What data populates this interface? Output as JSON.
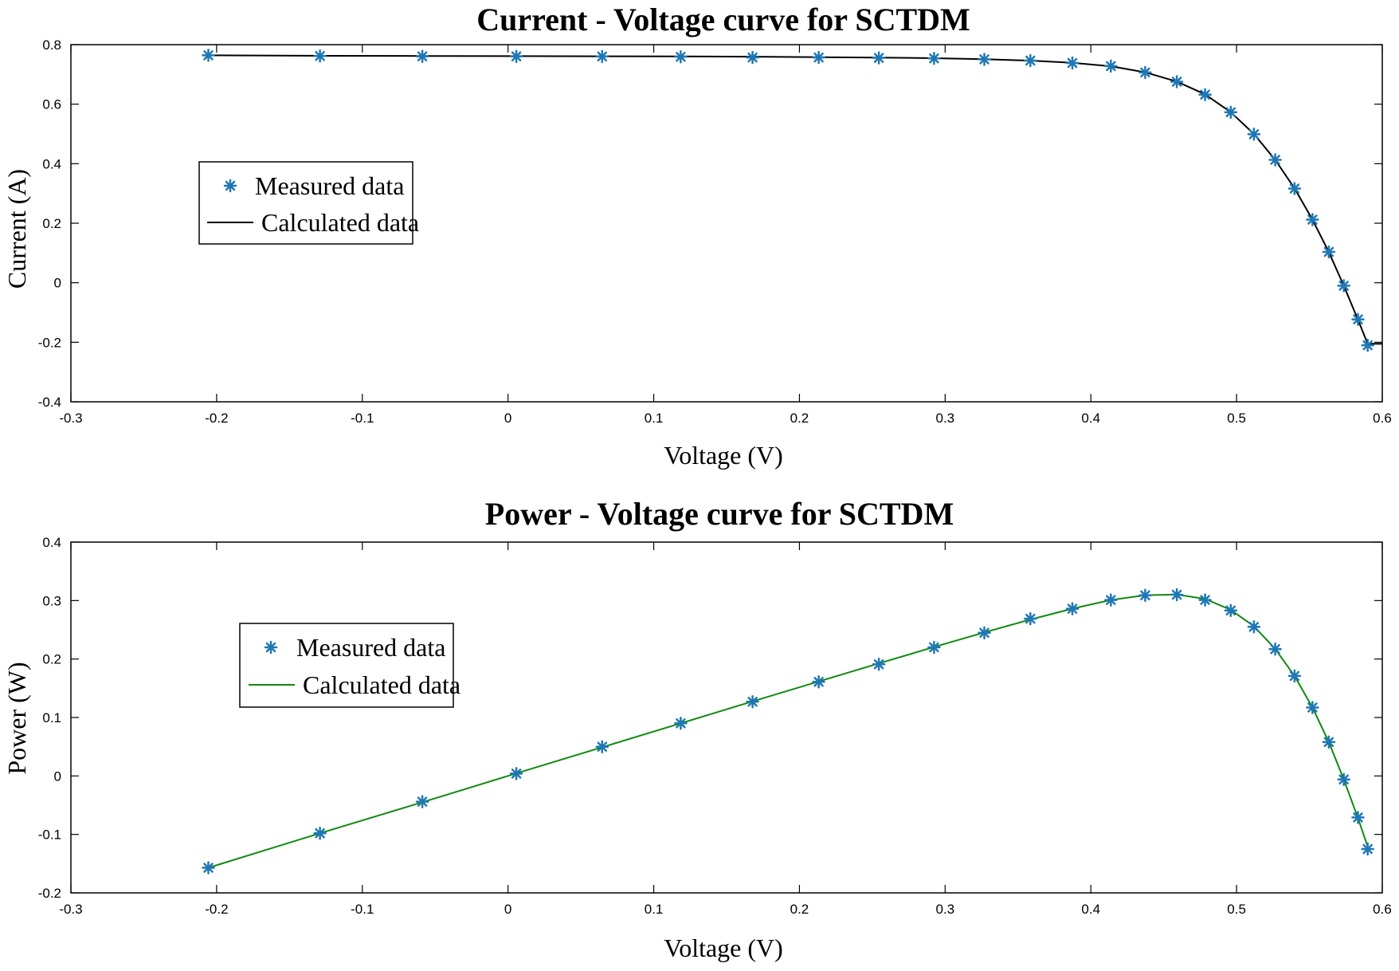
{
  "chart_data": [
    {
      "type": "line",
      "title": "Current - Voltage curve for SCTDM",
      "xlabel": "Voltage (V)",
      "ylabel": "Current  (A)",
      "xlim": [
        -0.3,
        0.6
      ],
      "ylim": [
        -0.4,
        0.8
      ],
      "xticks": [
        -0.3,
        -0.2,
        -0.1,
        0,
        0.1,
        0.2,
        0.3,
        0.4,
        0.5,
        0.6
      ],
      "xtick_labels": [
        "-0.3",
        "-0.2",
        "-0.1",
        "0",
        "0.1",
        "0.2",
        "0.3",
        "0.4",
        "0.5",
        "0.6"
      ],
      "yticks": [
        -0.4,
        -0.2,
        0,
        0.2,
        0.4,
        0.6,
        0.8
      ],
      "ytick_labels": [
        "-0.4",
        "-0.2",
        "0",
        "0.2",
        "0.4",
        "0.6",
        "0.8"
      ],
      "legend_position": "upper-left",
      "series": [
        {
          "name": "Measured data",
          "style": "markers",
          "color": "#1f77b4",
          "x": [
            -0.2057,
            -0.1291,
            -0.0588,
            0.0057,
            0.0646,
            0.1185,
            0.1678,
            0.2132,
            0.2545,
            0.2924,
            0.3269,
            0.3585,
            0.3873,
            0.4137,
            0.4373,
            0.459,
            0.4784,
            0.496,
            0.5119,
            0.5265,
            0.5398,
            0.5521,
            0.5633,
            0.5736,
            0.5833,
            0.59
          ],
          "y": [
            0.764,
            0.762,
            0.7605,
            0.7605,
            0.76,
            0.759,
            0.757,
            0.757,
            0.7555,
            0.754,
            0.7505,
            0.7465,
            0.7385,
            0.728,
            0.7065,
            0.6755,
            0.632,
            0.573,
            0.499,
            0.413,
            0.3165,
            0.212,
            0.1035,
            -0.01,
            -0.123,
            -0.21
          ]
        },
        {
          "name": "Calculated data",
          "style": "line",
          "color": "#000000",
          "x": [
            -0.2057,
            -0.1291,
            -0.0588,
            0.0057,
            0.0646,
            0.1185,
            0.1678,
            0.2132,
            0.2545,
            0.2924,
            0.3269,
            0.3585,
            0.3873,
            0.4137,
            0.4373,
            0.459,
            0.4784,
            0.496,
            0.5119,
            0.5265,
            0.5398,
            0.5521,
            0.5633,
            0.5736,
            0.5833,
            0.59,
            0.6
          ],
          "y": [
            0.764,
            0.7625,
            0.762,
            0.7615,
            0.761,
            0.7605,
            0.7595,
            0.758,
            0.7565,
            0.7545,
            0.751,
            0.7465,
            0.739,
            0.7275,
            0.707,
            0.676,
            0.633,
            0.573,
            0.5,
            0.413,
            0.317,
            0.212,
            0.103,
            -0.01,
            -0.124,
            -0.205,
            -0.205
          ]
        }
      ]
    },
    {
      "type": "line",
      "title": "Power - Voltage curve for SCTDM",
      "xlabel": "Voltage (V)",
      "ylabel": "Power  (W)",
      "xlim": [
        -0.3,
        0.6
      ],
      "ylim": [
        -0.2,
        0.4
      ],
      "xticks": [
        -0.3,
        -0.2,
        -0.1,
        0,
        0.1,
        0.2,
        0.3,
        0.4,
        0.5,
        0.6
      ],
      "xtick_labels": [
        "-0.3",
        "-0.2",
        "-0.1",
        "0",
        "0.1",
        "0.2",
        "0.3",
        "0.4",
        "0.5",
        "0.6"
      ],
      "yticks": [
        -0.2,
        -0.1,
        0,
        0.1,
        0.2,
        0.3,
        0.4
      ],
      "ytick_labels": [
        "-0.2",
        "-0.1",
        "0",
        "0.1",
        "0.2",
        "0.3",
        "0.4"
      ],
      "legend_position": "upper-left",
      "series": [
        {
          "name": "Measured data",
          "style": "markers",
          "color": "#1f77b4",
          "x": [
            -0.2057,
            -0.1291,
            -0.0588,
            0.0057,
            0.0646,
            0.1185,
            0.1678,
            0.2132,
            0.2545,
            0.2924,
            0.3269,
            0.3585,
            0.3873,
            0.4137,
            0.4373,
            0.459,
            0.4784,
            0.496,
            0.5119,
            0.5265,
            0.5398,
            0.5521,
            0.5633,
            0.5736,
            0.5833,
            0.59
          ],
          "y": [
            -0.157,
            -0.098,
            -0.044,
            0.004,
            0.05,
            0.09,
            0.127,
            0.161,
            0.191,
            0.22,
            0.245,
            0.269,
            0.286,
            0.301,
            0.309,
            0.31,
            0.301,
            0.283,
            0.255,
            0.217,
            0.171,
            0.117,
            0.058,
            -0.006,
            -0.071,
            -0.125
          ]
        },
        {
          "name": "Calculated data",
          "style": "line",
          "color": "#0f8a0f",
          "x": [
            -0.2057,
            -0.1291,
            -0.0588,
            0.0057,
            0.0646,
            0.1185,
            0.1678,
            0.2132,
            0.2545,
            0.2924,
            0.3269,
            0.3585,
            0.3873,
            0.4137,
            0.4373,
            0.459,
            0.4784,
            0.496,
            0.5119,
            0.5265,
            0.5398,
            0.5521,
            0.5633,
            0.5736,
            0.5833,
            0.59
          ],
          "y": [
            -0.157,
            -0.098,
            -0.045,
            0.0044,
            0.0492,
            0.0901,
            0.1275,
            0.1617,
            0.1925,
            0.2206,
            0.2455,
            0.2676,
            0.2862,
            0.301,
            0.3092,
            0.3103,
            0.3028,
            0.2842,
            0.256,
            0.2174,
            0.1711,
            0.117,
            0.058,
            -0.006,
            -0.072,
            -0.121
          ]
        }
      ]
    }
  ]
}
